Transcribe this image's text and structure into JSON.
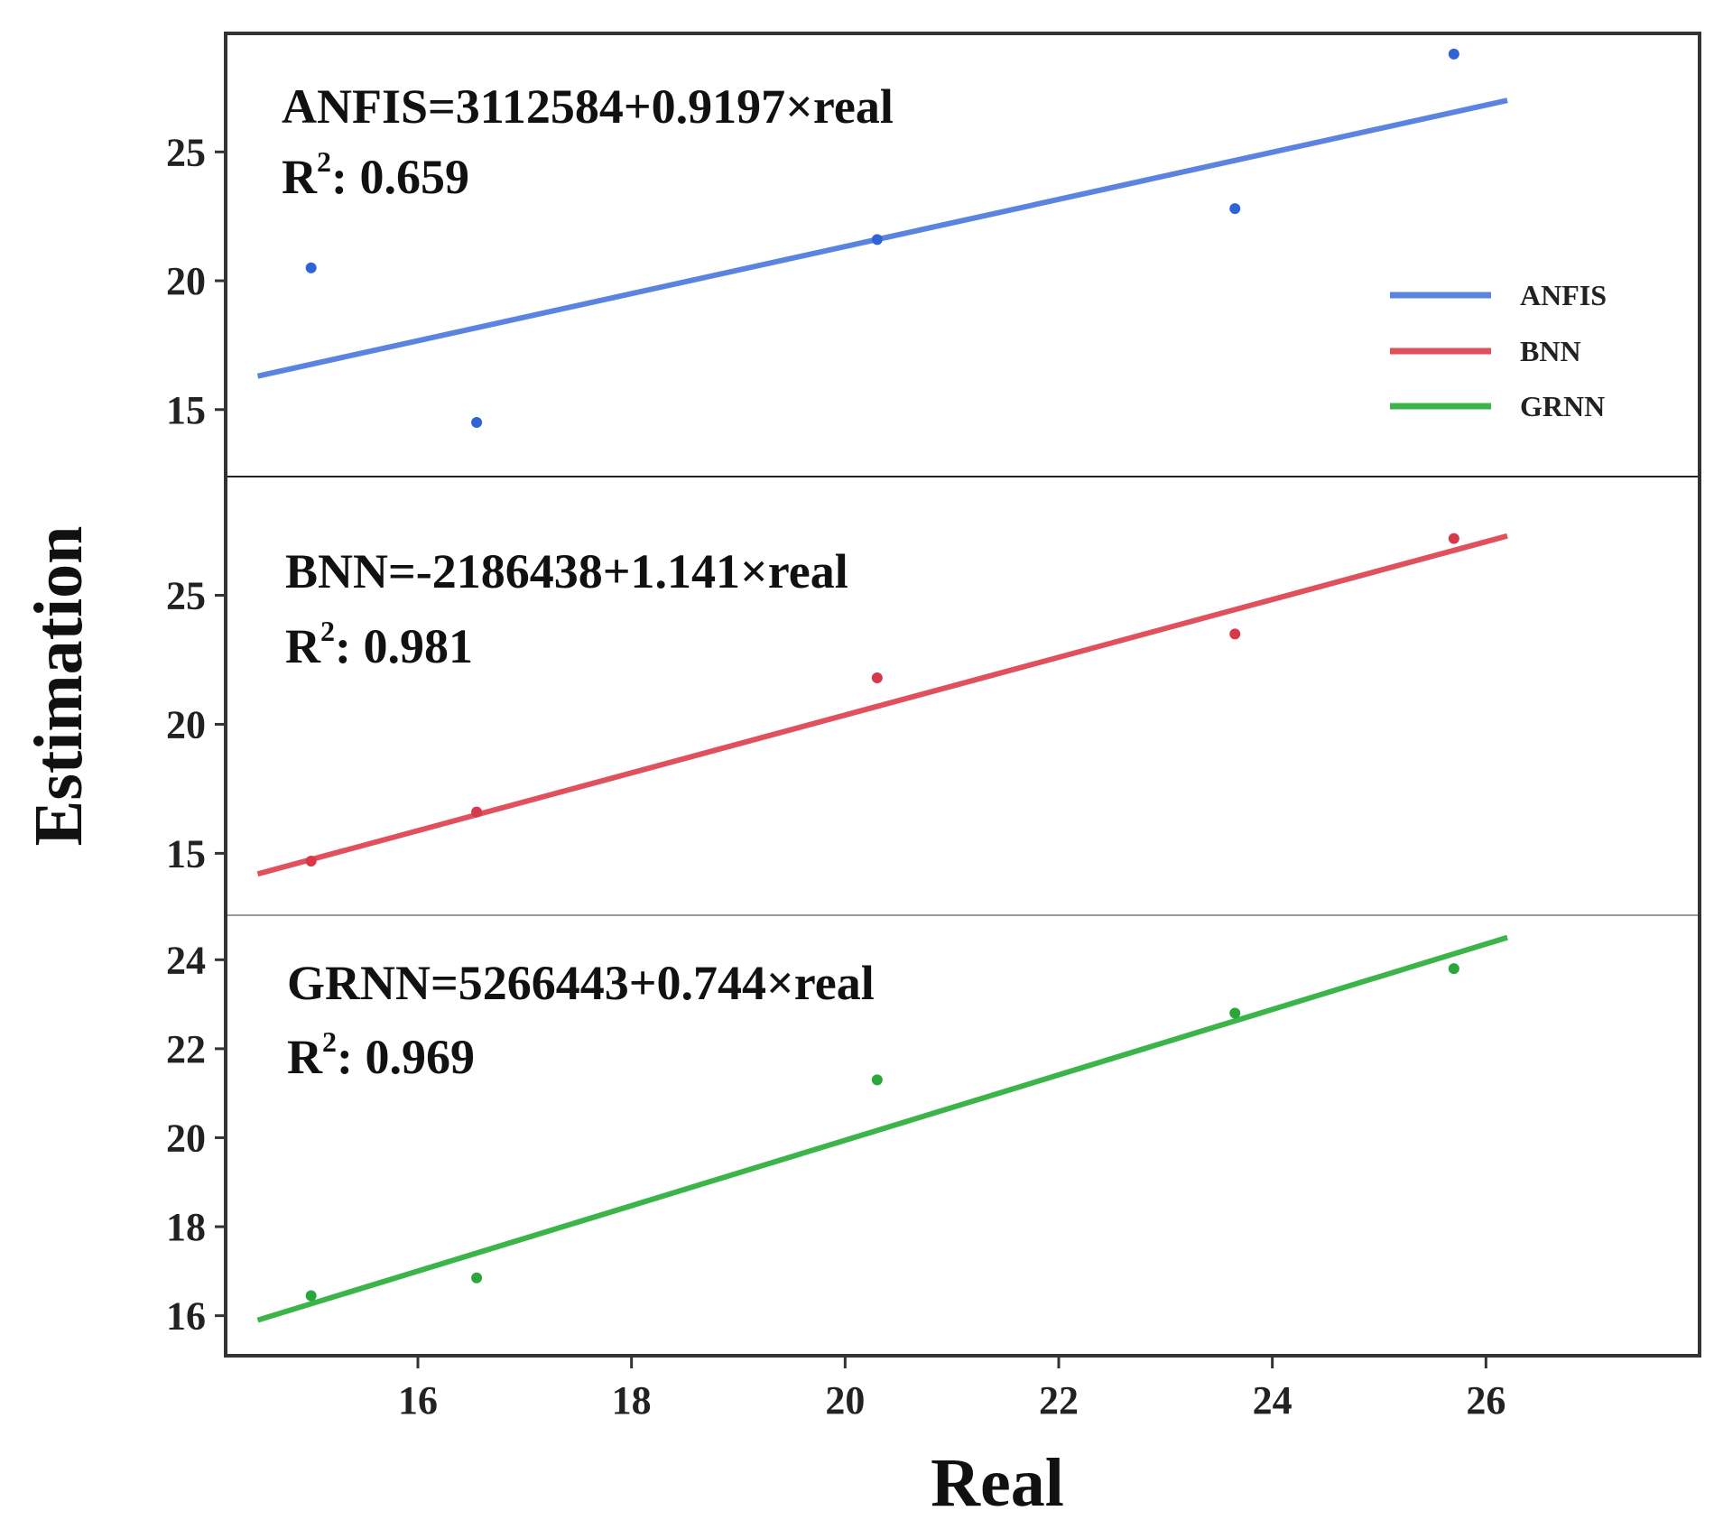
{
  "chart_data": {
    "type": "scatter",
    "xlabel": "Real",
    "ylabel": "Estimation",
    "xlim": [
      14.2,
      28.0
    ],
    "x_ticks": [
      16,
      18,
      20,
      22,
      24,
      26
    ],
    "grid": false,
    "legend": {
      "placement": "top-right",
      "entries": [
        {
          "name": "ANFIS",
          "color": "#5b83e0"
        },
        {
          "name": "BNN",
          "color": "#e0505d"
        },
        {
          "name": "GRNN",
          "color": "#3bb44a"
        }
      ]
    },
    "panels": [
      {
        "id": "anfis",
        "color": "#5b83e0",
        "point_color": "#2f63d6",
        "equation": "ANFIS=3112584+0.9197×real",
        "r2_label": "R",
        "r2_sup": "2",
        "r2_value": ": 0.659",
        "ylim": [
          12.4,
          29.6
        ],
        "y_ticks": [
          15,
          20,
          25
        ],
        "points": [
          {
            "x": 15.0,
            "y": 20.5
          },
          {
            "x": 16.55,
            "y": 14.5
          },
          {
            "x": 20.3,
            "y": 21.6
          },
          {
            "x": 23.65,
            "y": 22.8
          },
          {
            "x": 25.7,
            "y": 28.8
          }
        ],
        "fit_line": {
          "x": [
            14.5,
            26.2
          ],
          "y": [
            16.3,
            27.0
          ]
        }
      },
      {
        "id": "bnn",
        "color": "#e0505d",
        "point_color": "#d63a49",
        "equation": "BNN=-2186438+1.141×real",
        "r2_label": "R",
        "r2_sup": "2",
        "r2_value": ": 0.981",
        "ylim": [
          12.6,
          29.6
        ],
        "y_ticks": [
          15,
          20,
          25
        ],
        "points": [
          {
            "x": 15.0,
            "y": 14.7
          },
          {
            "x": 16.55,
            "y": 16.6
          },
          {
            "x": 20.3,
            "y": 21.8
          },
          {
            "x": 23.65,
            "y": 23.5
          },
          {
            "x": 25.7,
            "y": 27.2
          }
        ],
        "fit_line": {
          "x": [
            14.5,
            26.2
          ],
          "y": [
            14.2,
            27.3
          ]
        }
      },
      {
        "id": "grnn",
        "color": "#3bb44a",
        "point_color": "#2aa63a",
        "equation": "GRNN=5266443+0.744×real",
        "r2_label": "R",
        "r2_sup": "2",
        "r2_value": ": 0.969",
        "ylim": [
          15.1,
          25.0
        ],
        "y_ticks": [
          16,
          18,
          20,
          22,
          24
        ],
        "points": [
          {
            "x": 15.0,
            "y": 16.45
          },
          {
            "x": 16.55,
            "y": 16.85
          },
          {
            "x": 20.3,
            "y": 21.3
          },
          {
            "x": 23.65,
            "y": 22.8
          },
          {
            "x": 25.7,
            "y": 23.8
          }
        ],
        "fit_line": {
          "x": [
            14.5,
            26.2
          ],
          "y": [
            15.9,
            24.5
          ]
        }
      }
    ]
  }
}
